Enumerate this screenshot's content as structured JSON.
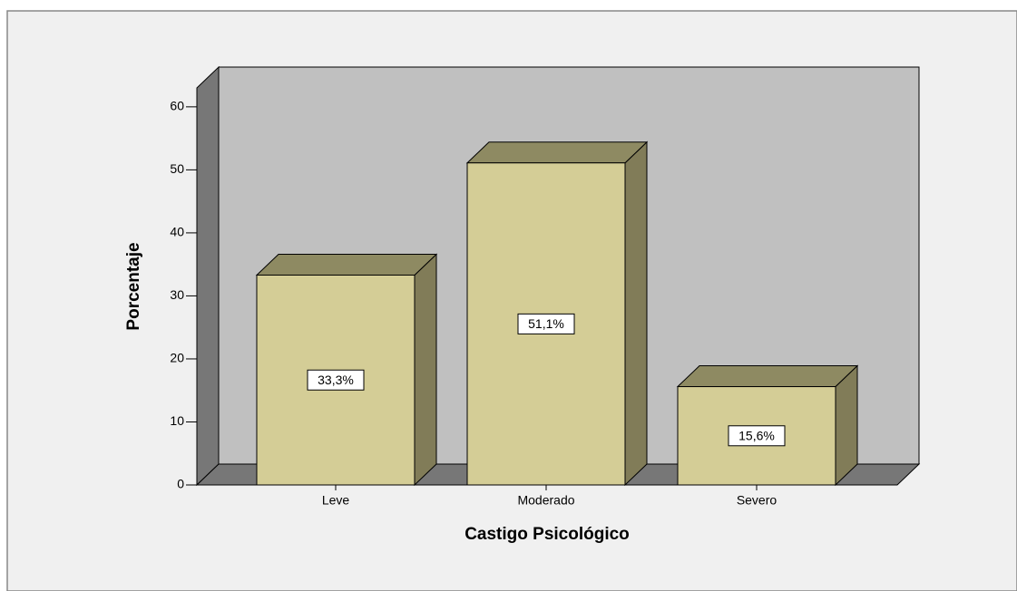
{
  "chart_data": {
    "type": "bar3d",
    "x_label": "Castigo Psicológico",
    "y_label": "Porcentaje",
    "categories": [
      "Leve",
      "Moderado",
      "Severo"
    ],
    "values": [
      33.3,
      51.1,
      15.6
    ],
    "value_labels": [
      "33,3%",
      "51,1%",
      "15,6%"
    ],
    "color": "#d4cd96",
    "ylim": [
      0,
      63
    ],
    "yticks": [
      0,
      10,
      20,
      30,
      40,
      50,
      60
    ]
  }
}
